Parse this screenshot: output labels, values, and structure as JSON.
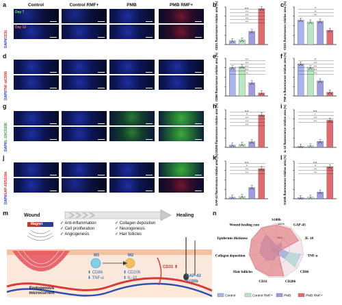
{
  "panel_labels": [
    "a",
    "b",
    "c",
    "d",
    "e",
    "f",
    "g",
    "h",
    "i",
    "j",
    "k",
    "l",
    "m",
    "n"
  ],
  "columns": [
    "Control",
    "Control RMF+",
    "PMB",
    "PMB RMF+"
  ],
  "row_labels": {
    "a": {
      "text": "DAPI/CD31",
      "dapi": "DAPI",
      "marker": "CD31"
    },
    "d": {
      "text": "DAPI/TNF-α/CD86",
      "dapi": "DAPI",
      "marker": "TNF-α/CD86"
    },
    "g": {
      "text": "DAPI/IL-10/CD206",
      "dapi": "DAPI",
      "marker": "IL-10/CD206"
    },
    "j": {
      "text": "DAPI/GAP-43/S100b",
      "dapi": "DAPI",
      "marker": "GAP-43/S100b"
    }
  },
  "day_labels": [
    "Day 7",
    "Day 12"
  ],
  "colors": {
    "control": "#aab4ee",
    "control_rmf": "#b7e8c2",
    "pmb": "#9f9be0",
    "pmb_rmf": "#e06a6e",
    "accent_blue": "#1a2fd0"
  },
  "chart_data": [
    {
      "panel": "b",
      "type": "bar",
      "ylabel": "CD31 fluorescence relative area (%)",
      "ylim": [
        0,
        10
      ],
      "categories": [
        "Control",
        "Control RMF+",
        "PMB",
        "PMB RMF+"
      ],
      "values": [
        1.0,
        1.2,
        3.5,
        9.5
      ],
      "annotations": [
        "n.s.",
        "***",
        "***",
        "***",
        "***"
      ]
    },
    {
      "panel": "c",
      "type": "bar",
      "ylabel": "CD31 fluorescence relative area (%)",
      "ylim": [
        0,
        10
      ],
      "categories": [
        "Control",
        "Control RMF+",
        "PMB",
        "PMB RMF+"
      ],
      "values": [
        6.5,
        6.0,
        6.2,
        3.8
      ],
      "annotations": [
        "**",
        "**",
        "***"
      ]
    },
    {
      "panel": "e",
      "type": "bar",
      "ylabel": "CD86 fluorescence relative area (%)",
      "ylim": [
        0,
        10
      ],
      "categories": [
        "Control",
        "Control RMF+",
        "PMB",
        "PMB RMF+"
      ],
      "values": [
        7.5,
        7.8,
        3.5,
        0.8
      ],
      "annotations": [
        "***",
        "***",
        "***",
        "***",
        "**"
      ]
    },
    {
      "panel": "f",
      "type": "bar",
      "ylabel": "TNF-α fluorescence relative area (%)",
      "ylim": [
        0,
        10
      ],
      "categories": [
        "Control",
        "Control RMF+",
        "PMB",
        "PMB RMF+"
      ],
      "values": [
        8.5,
        7.5,
        4.0,
        1.0
      ],
      "annotations": [
        "**",
        "***",
        "***",
        "***",
        "***"
      ]
    },
    {
      "panel": "h",
      "type": "bar",
      "ylabel": "CD206 fluorescence relative area (%)",
      "ylim": [
        0,
        10
      ],
      "categories": [
        "Control",
        "Control RMF+",
        "PMB",
        "PMB RMF+"
      ],
      "values": [
        0.6,
        0.8,
        1.5,
        8.6
      ],
      "annotations": [
        "n.s.",
        "**",
        "***",
        "***",
        "***"
      ]
    },
    {
      "panel": "i",
      "type": "bar",
      "ylabel": "IL-10 fluorescence relative area (%)",
      "ylim": [
        0,
        10
      ],
      "categories": [
        "Control",
        "Control RMF+",
        "PMB",
        "PMB RMF+"
      ],
      "values": [
        0.3,
        0.4,
        1.6,
        7.2
      ],
      "annotations": [
        "n.s.",
        "*",
        "***",
        "***"
      ]
    },
    {
      "panel": "k",
      "type": "bar",
      "ylabel": "GAP-43 fluorescence relative area (%)",
      "ylim": [
        0,
        10
      ],
      "categories": [
        "Control",
        "Control RMF+",
        "PMB",
        "PMB RMF+"
      ],
      "values": [
        0.4,
        0.6,
        3.0,
        8.0
      ],
      "annotations": [
        "n.s.",
        "**",
        "***",
        "***"
      ]
    },
    {
      "panel": "l",
      "type": "bar",
      "ylabel": "S100b fluorescence relative area (%)",
      "ylim": [
        0,
        10
      ],
      "categories": [
        "Control",
        "Control RMF+",
        "PMB",
        "PMB RMF+"
      ],
      "values": [
        0.3,
        0.4,
        1.8,
        8.5
      ],
      "annotations": [
        "n.s.",
        "**",
        "***",
        "***"
      ]
    },
    {
      "panel": "n",
      "type": "radar",
      "axes": [
        "S100b",
        "GAP-43",
        "IL-10",
        "TNF-α",
        "CD86",
        "CD206",
        "CD31",
        "Hair follicles",
        "Collagen deposition",
        "Epidermis thickness",
        "Wound healing rate"
      ],
      "rlabels": [
        "100%",
        "50%",
        "0%"
      ],
      "series": [
        {
          "name": "Control",
          "values": [
            5,
            5,
            5,
            90,
            88,
            5,
            10,
            10,
            15,
            20,
            30
          ]
        },
        {
          "name": "Control RMF+",
          "values": [
            5,
            8,
            6,
            80,
            92,
            8,
            15,
            15,
            20,
            25,
            35
          ]
        },
        {
          "name": "PMB",
          "values": [
            20,
            35,
            20,
            45,
            40,
            15,
            35,
            50,
            60,
            60,
            70
          ]
        },
        {
          "name": "PMB RMF+",
          "values": [
            95,
            95,
            90,
            10,
            10,
            95,
            95,
            100,
            100,
            100,
            100
          ]
        }
      ]
    }
  ],
  "panel_m": {
    "wound": "Wound",
    "healing": "Healing",
    "magnet": "Magnet",
    "endogenous": "Endogenous microcurrent",
    "checks_left": [
      "Anti-inflammation",
      "Cell proliferation",
      "Angiogenesis"
    ],
    "checks_right": [
      "Collagen deposition",
      "Neurogenesis",
      "Hair follicles"
    ],
    "m1": "M1",
    "m2": "M2",
    "cd86": "CD86",
    "tnf": "TNF-α",
    "cd206": "CD206",
    "il10": "IL-10",
    "cd31": "CD31",
    "gap43": "GAP-43",
    "s100b": "S100b"
  }
}
